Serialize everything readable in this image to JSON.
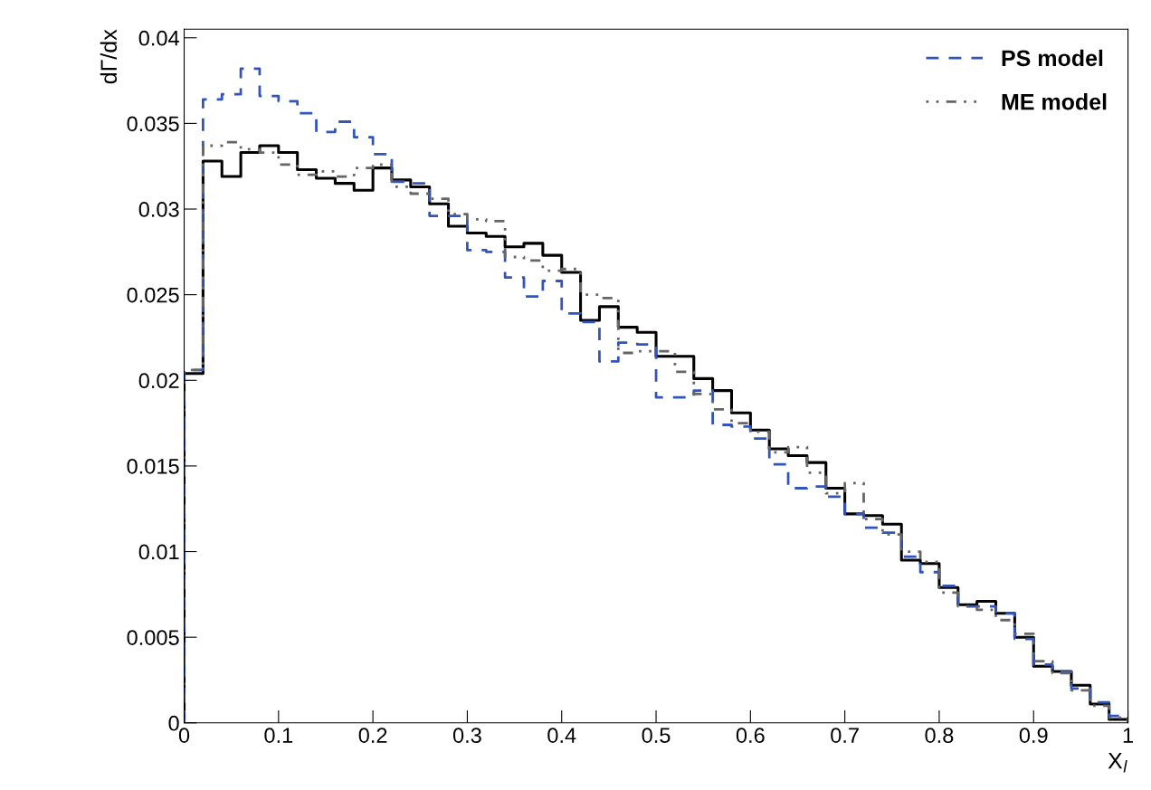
{
  "chart_data": {
    "type": "histogram",
    "ylabel": "dΓ/dx",
    "xlabel": "X$_{l}$",
    "bins": [
      0,
      0.02,
      0.04,
      0.06,
      0.08,
      0.1,
      0.12,
      0.14,
      0.16,
      0.18,
      0.2,
      0.22,
      0.24,
      0.26,
      0.28,
      0.3,
      0.32,
      0.34,
      0.36,
      0.38,
      0.4,
      0.42,
      0.44,
      0.46,
      0.48,
      0.5,
      0.52,
      0.54,
      0.56,
      0.58,
      0.6,
      0.62,
      0.64,
      0.66,
      0.68,
      0.7,
      0.72,
      0.74,
      0.76,
      0.78,
      0.8,
      0.82,
      0.84,
      0.86,
      0.88,
      0.9,
      0.92,
      0.94,
      0.96,
      0.98,
      1
    ],
    "series": [
      {
        "color": "#000000",
        "line_style": "solid",
        "values": [
          0.0204,
          0.0328,
          0.0319,
          0.0333,
          0.0337,
          0.0333,
          0.0323,
          0.0318,
          0.0315,
          0.0311,
          0.0324,
          0.0317,
          0.0313,
          0.0303,
          0.029,
          0.0286,
          0.0284,
          0.0278,
          0.028,
          0.0273,
          0.0263,
          0.0235,
          0.0243,
          0.0231,
          0.0228,
          0.0214,
          0.0214,
          0.0201,
          0.0194,
          0.0181,
          0.0171,
          0.016,
          0.0156,
          0.0152,
          0.0137,
          0.0122,
          0.0121,
          0.0116,
          0.0095,
          0.0093,
          0.0079,
          0.0069,
          0.0071,
          0.0064,
          0.005,
          0.0033,
          0.003,
          0.0022,
          0.0011,
          0.0002
        ]
      },
      {
        "name": "PS model",
        "color": "#3355bb",
        "line_style": "dashed",
        "values": [
          0.0206,
          0.0364,
          0.0367,
          0.0382,
          0.0366,
          0.0363,
          0.0356,
          0.0345,
          0.0351,
          0.0342,
          0.0332,
          0.0316,
          0.0315,
          0.0296,
          0.0296,
          0.0276,
          0.0275,
          0.026,
          0.0249,
          0.0258,
          0.0239,
          0.0234,
          0.0211,
          0.0222,
          0.0221,
          0.019,
          0.019,
          0.0194,
          0.0174,
          0.0173,
          0.0166,
          0.0151,
          0.0137,
          0.0138,
          0.0132,
          0.0122,
          0.0114,
          0.0111,
          0.0097,
          0.0088,
          0.008,
          0.0068,
          0.0068,
          0.0064,
          0.0049,
          0.0034,
          0.003,
          0.002,
          0.0012,
          0.0004
        ]
      },
      {
        "name": "ME model",
        "color": "#666666",
        "line_style": "dotted",
        "values": [
          0.0206,
          0.0337,
          0.0339,
          0.0335,
          0.0333,
          0.0326,
          0.032,
          0.0322,
          0.0319,
          0.0324,
          0.0326,
          0.0313,
          0.0309,
          0.0306,
          0.0297,
          0.0294,
          0.0293,
          0.0272,
          0.027,
          0.0264,
          0.0265,
          0.025,
          0.0248,
          0.0216,
          0.0217,
          0.0217,
          0.0205,
          0.0192,
          0.0183,
          0.0175,
          0.017,
          0.0158,
          0.0161,
          0.0146,
          0.0134,
          0.014,
          0.0119,
          0.011,
          0.01,
          0.0094,
          0.0076,
          0.0068,
          0.0066,
          0.006,
          0.0052,
          0.0036,
          0.0029,
          0.0019,
          0.001,
          0.0003
        ]
      }
    ],
    "xlim": [
      0,
      1
    ],
    "xticks": [
      0,
      0.1,
      0.2,
      0.3,
      0.4,
      0.5,
      0.6,
      0.7,
      0.8,
      0.9,
      1
    ],
    "ylim": [
      0,
      0.0405
    ],
    "yticks": [
      0,
      0.005,
      0.01,
      0.015,
      0.02,
      0.025,
      0.03,
      0.035,
      0.04
    ],
    "grid": false,
    "legend": "top right"
  }
}
